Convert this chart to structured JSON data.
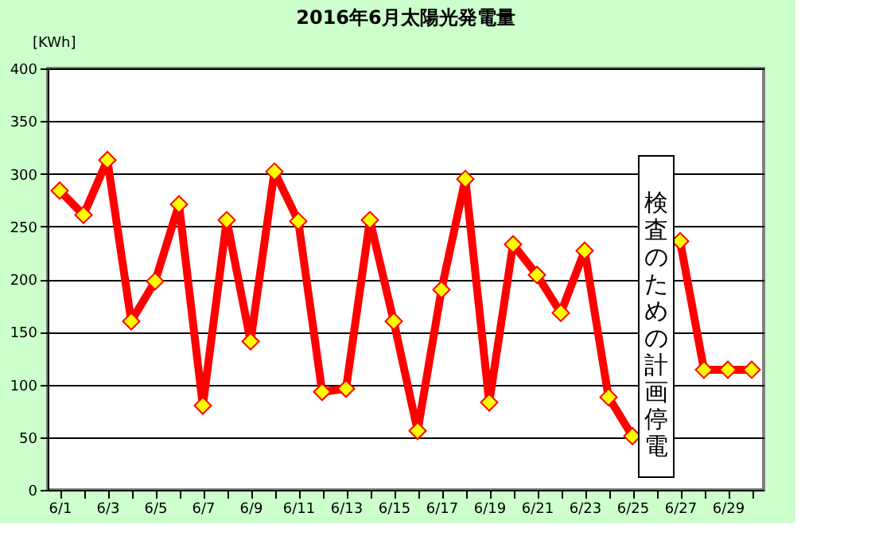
{
  "chart_data": {
    "type": "line",
    "title": "2016年6月太陽光発電量",
    "ylabel": "[KWh]",
    "categories": [
      "6/1",
      null,
      "6/3",
      null,
      "6/5",
      null,
      "6/7",
      null,
      "6/9",
      null,
      "6/11",
      null,
      "6/13",
      null,
      "6/15",
      null,
      "6/17",
      null,
      "6/19",
      null,
      "6/21",
      null,
      "6/23",
      null,
      "6/25",
      null,
      "6/27",
      null,
      "6/29",
      null
    ],
    "series": [
      {
        "color": "#ff0000",
        "values": [
          284,
          261,
          313,
          160,
          198,
          271,
          80,
          256,
          141,
          302,
          255,
          93,
          96,
          256,
          160,
          56,
          190,
          295,
          83,
          233,
          204,
          168,
          227,
          88,
          51,
          null,
          236,
          114,
          114,
          114
        ]
      }
    ],
    "ylim": [
      0,
      400
    ],
    "yticks": [
      0,
      50,
      100,
      150,
      200,
      250,
      300,
      350,
      400
    ],
    "grid": "y",
    "marker": "diamond",
    "line_style": "solid",
    "annotations": [
      "検査のための計画停電"
    ]
  }
}
